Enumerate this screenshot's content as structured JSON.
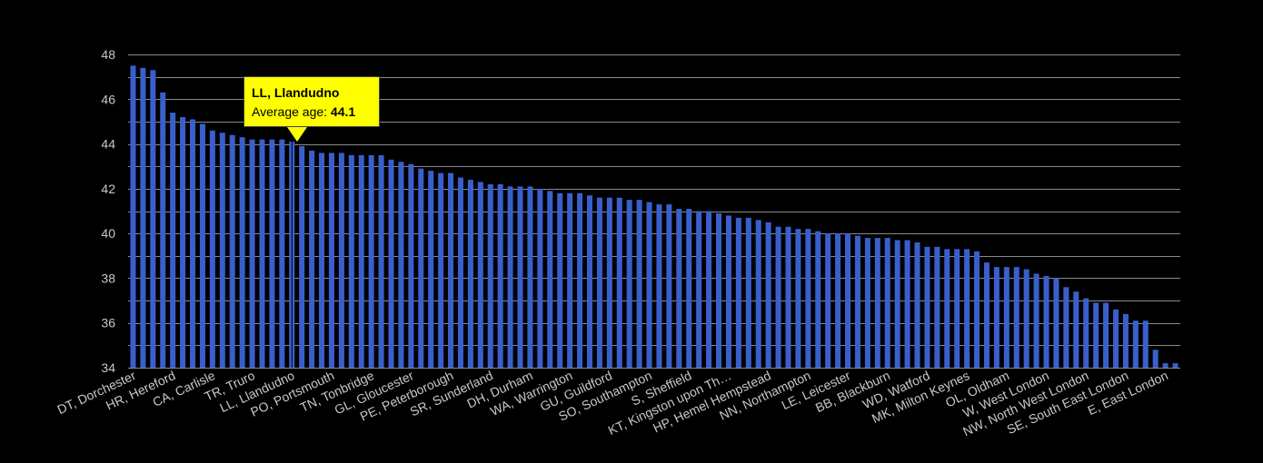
{
  "chart_data": {
    "type": "bar",
    "ylim": [
      34,
      48
    ],
    "yticks": [
      34,
      36,
      38,
      40,
      42,
      44,
      46,
      48
    ],
    "grid": true,
    "bar_color": "#3a5fcd",
    "background": "#000000",
    "categories": [
      "DT, Dorchester",
      "",
      "",
      "",
      "HR, Hereford",
      "",
      "",
      "",
      "CA, Carlisle",
      "",
      "",
      "",
      "TR, Truro",
      "",
      "",
      "",
      "LL, Llandudno",
      "",
      "",
      "",
      "PO, Portsmouth",
      "",
      "",
      "",
      "TN, Tonbridge",
      "",
      "",
      "",
      "GL, Gloucester",
      "",
      "",
      "",
      "PE, Peterborough",
      "",
      "",
      "",
      "SR, Sunderland",
      "",
      "",
      "",
      "DH, Durham",
      "",
      "",
      "",
      "WA, Warrington",
      "",
      "",
      "",
      "GU, Guildford",
      "",
      "",
      "",
      "SO, Southampton",
      "",
      "",
      "",
      "S, Sheffield",
      "",
      "",
      "",
      "KT, Kingston upon Th…",
      "",
      "",
      "",
      "HP, Hemel Hempstead",
      "",
      "",
      "",
      "NN, Northampton",
      "",
      "",
      "",
      "LE, Leicester",
      "",
      "",
      "",
      "BB, Blackburn",
      "",
      "",
      "",
      "WD, Watford",
      "",
      "",
      "",
      "MK, Milton Keynes",
      "",
      "",
      "",
      "OL, Oldham",
      "",
      "",
      "",
      "W, West London",
      "",
      "",
      "",
      "NW, North West London",
      "",
      "",
      "",
      "SE, South East London",
      "",
      "",
      "",
      "E, East London",
      ""
    ],
    "values": [
      47.5,
      47.4,
      47.3,
      46.3,
      45.4,
      45.2,
      45.1,
      44.9,
      44.6,
      44.5,
      44.4,
      44.3,
      44.2,
      44.2,
      44.2,
      44.2,
      44.1,
      43.9,
      43.7,
      43.6,
      43.6,
      43.6,
      43.5,
      43.5,
      43.5,
      43.5,
      43.3,
      43.2,
      43.1,
      42.9,
      42.8,
      42.7,
      42.7,
      42.5,
      42.4,
      42.3,
      42.2,
      42.2,
      42.1,
      42.1,
      42.1,
      42.0,
      41.9,
      41.8,
      41.8,
      41.8,
      41.7,
      41.6,
      41.6,
      41.6,
      41.5,
      41.5,
      41.4,
      41.3,
      41.3,
      41.1,
      41.1,
      41.0,
      41.0,
      40.9,
      40.8,
      40.7,
      40.7,
      40.6,
      40.5,
      40.3,
      40.3,
      40.2,
      40.2,
      40.1,
      40.0,
      40.0,
      40.0,
      39.9,
      39.8,
      39.8,
      39.8,
      39.7,
      39.7,
      39.6,
      39.4,
      39.4,
      39.3,
      39.3,
      39.3,
      39.2,
      38.7,
      38.5,
      38.5,
      38.5,
      38.4,
      38.2,
      38.1,
      38.0,
      37.6,
      37.4,
      37.1,
      36.9,
      36.9,
      36.6,
      36.4,
      36.1,
      36.1,
      34.8,
      34.2,
      34.2
    ]
  },
  "tooltip": {
    "title": "LL, Llandudno",
    "label": "Average age: ",
    "value": "44.1"
  }
}
